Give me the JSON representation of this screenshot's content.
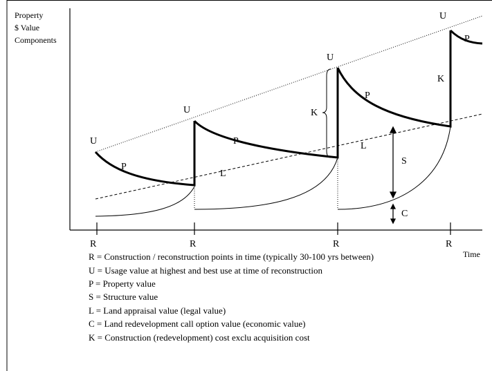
{
  "y_axis_label": [
    "Property",
    "$ Value",
    "Components"
  ],
  "x_axis_label": "Time",
  "r_labels": [
    "R",
    "R",
    "R",
    "R"
  ],
  "u_labels": [
    "U",
    "U",
    "U",
    "U"
  ],
  "p_labels": [
    "P",
    "P",
    "P",
    "P"
  ],
  "l_labels": [
    "L",
    "L"
  ],
  "k_labels": [
    "K",
    "K"
  ],
  "s_label": "S",
  "c_label": "C",
  "legend": [
    "R = Construction / reconstruction points in time (typically 30-100 yrs between)",
    "U = Usage value at highest and best use at time of reconstruction",
    "P = Property value",
    "S = Structure value",
    "L = Land appraisal value (legal value)",
    "C = Land redevelopment call option value (economic value)",
    "K = Construction (redevelopment) cost exclu acquisition cost"
  ]
}
